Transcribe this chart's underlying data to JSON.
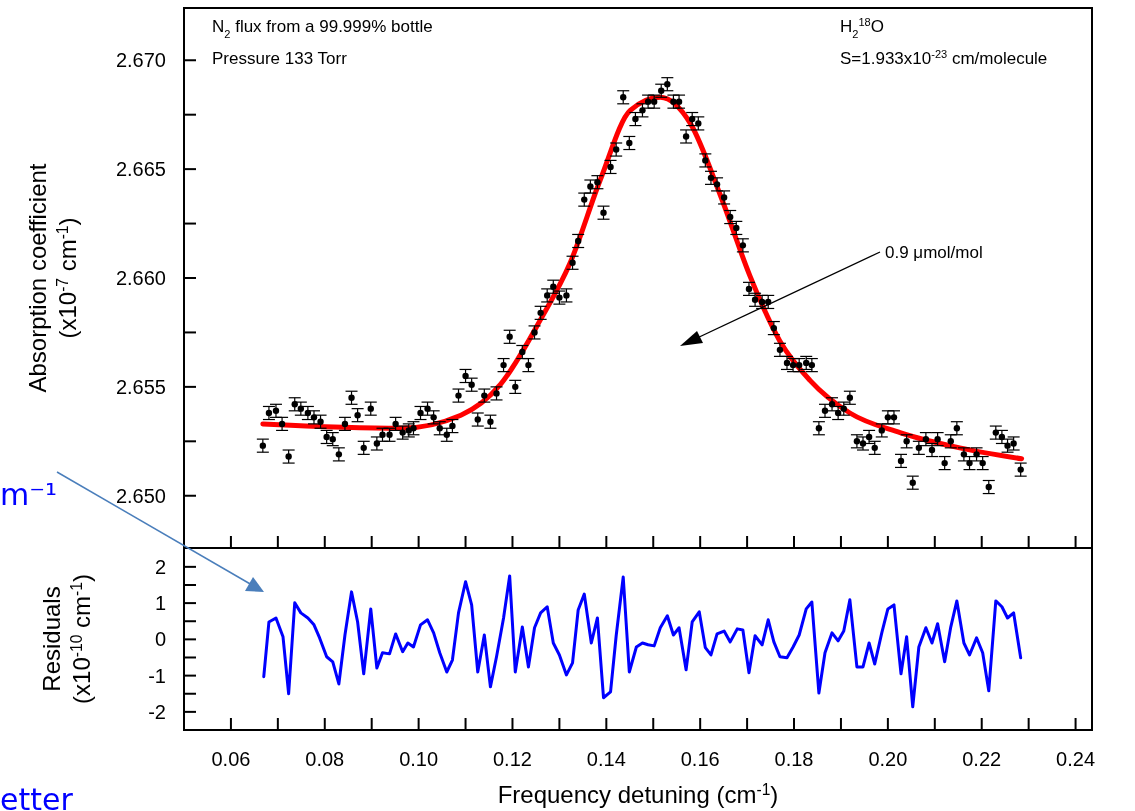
{
  "chart_data": [
    {
      "type": "scatter",
      "ylabel": "Absorption coefficient (x10$^{-7}$ cm$^{-1}$)",
      "tick_labels": "y",
      "grid": false,
      "annotations": [
        "N$_{2}$ flux from a 99.999% bottle",
        "Pressure 133 Torr",
        "H$_{2}$$^{18}$O",
        "S=1.933x10$^{-23}$ cm/molecule",
        "0.9 μmol/mol",
        "m⁻¹"
      ],
      "xlim": [
        0.05,
        0.2435
      ],
      "ylim": [
        2.6476,
        2.6724
      ],
      "xticks": [
        {
          "value": 0.06,
          "label": null
        },
        {
          "value": 0.07,
          "label": null
        },
        {
          "value": 0.08,
          "label": null
        },
        {
          "value": 0.09,
          "label": null
        },
        {
          "value": 0.1,
          "label": null
        },
        {
          "value": 0.11,
          "label": null
        },
        {
          "value": 0.12,
          "label": null
        },
        {
          "value": 0.13,
          "label": null
        },
        {
          "value": 0.14,
          "label": null
        },
        {
          "value": 0.15,
          "label": null
        },
        {
          "value": 0.16,
          "label": null
        },
        {
          "value": 0.17,
          "label": null
        },
        {
          "value": 0.18,
          "label": null
        },
        {
          "value": 0.19,
          "label": null
        },
        {
          "value": 0.2,
          "label": null
        },
        {
          "value": 0.21,
          "label": null
        },
        {
          "value": 0.22,
          "label": null
        },
        {
          "value": 0.23,
          "label": null
        },
        {
          "value": 0.24,
          "label": null
        }
      ],
      "yticks": [
        {
          "value": 2.65,
          "label": "2.650"
        },
        {
          "value": 2.6525,
          "label": null
        },
        {
          "value": 2.655,
          "label": "2.655"
        },
        {
          "value": 2.6575,
          "label": null
        },
        {
          "value": 2.66,
          "label": "2.660"
        },
        {
          "value": 2.6625,
          "label": null
        },
        {
          "value": 2.665,
          "label": "2.665"
        },
        {
          "value": 2.6675,
          "label": null
        },
        {
          "value": 2.67,
          "label": "2.670"
        }
      ],
      "series": [
        {
          "marker": "circle",
          "color": "#000000",
          "x": [
            0.0668,
            0.0681,
            0.0696,
            0.0709,
            0.0723,
            0.0736,
            0.0749,
            0.0764,
            0.0777,
            0.0791,
            0.0804,
            0.0817,
            0.083,
            0.0843,
            0.0857,
            0.087,
            0.0883,
            0.0898,
            0.0911,
            0.0923,
            0.0938,
            0.0951,
            0.0966,
            0.0979,
            0.0989,
            0.1004,
            0.1019,
            0.1032,
            0.1045,
            0.106,
            0.1072,
            0.1085,
            0.11,
            0.1113,
            0.1126,
            0.114,
            0.1153,
            0.1166,
            0.1181,
            0.1194,
            0.1206,
            0.1221,
            0.1234,
            0.1247,
            0.126,
            0.1274,
            0.1287,
            0.13,
            0.1315,
            0.1328,
            0.134,
            0.1353,
            0.1366,
            0.1381,
            0.1394,
            0.1409,
            0.1421,
            0.1436,
            0.1449,
            0.1462,
            0.1477,
            0.1489,
            0.1502,
            0.1517,
            0.153,
            0.1543,
            0.1555,
            0.157,
            0.1583,
            0.1596,
            0.1611,
            0.1623,
            0.1636,
            0.1651,
            0.1664,
            0.1677,
            0.1691,
            0.1704,
            0.1717,
            0.1732,
            0.1745,
            0.1757,
            0.177,
            0.1785,
            0.1798,
            0.1811,
            0.1826,
            0.1838,
            0.1853,
            0.1866,
            0.1881,
            0.1894,
            0.1906,
            0.1919,
            0.1934,
            0.1947,
            0.196,
            0.1972,
            0.1987,
            0.2,
            0.2013,
            0.2028,
            0.204,
            0.2053,
            0.2066,
            0.2081,
            0.2094,
            0.2106,
            0.2121,
            0.2134,
            0.2147,
            0.2162,
            0.2174,
            0.2189,
            0.2202,
            0.2215,
            0.223,
            0.2243,
            0.2255,
            0.2268,
            0.2283
          ],
          "values": [
            2.6523,
            2.6538,
            2.6539,
            2.6533,
            2.6518,
            2.6542,
            2.654,
            2.6538,
            2.6536,
            2.6534,
            2.6527,
            2.6526,
            2.6519,
            2.6533,
            2.6545,
            2.6537,
            2.6522,
            2.654,
            2.6524,
            2.6528,
            2.6528,
            2.6533,
            2.6529,
            2.653,
            2.6531,
            2.6538,
            2.654,
            2.6536,
            2.6531,
            2.6528,
            2.6532,
            2.6546,
            2.6555,
            2.6551,
            2.6535,
            2.6546,
            2.6534,
            2.6547,
            2.656,
            2.6573,
            2.655,
            2.6566,
            2.656,
            2.6575,
            2.6584,
            2.6592,
            2.6596,
            2.6591,
            2.6592,
            2.6607,
            2.6617,
            2.6636,
            2.6642,
            2.6644,
            2.663,
            2.6651,
            2.6659,
            2.6683,
            2.6662,
            2.6673,
            2.6677,
            2.6681,
            2.6681,
            2.6686,
            2.6689,
            2.6681,
            2.6681,
            2.6665,
            2.6673,
            2.6671,
            2.6654,
            2.6646,
            2.6643,
            2.6637,
            2.6628,
            2.6623,
            2.6615,
            2.6595,
            2.659,
            2.6589,
            2.6589,
            2.6577,
            2.6567,
            2.6561,
            2.656,
            2.656,
            2.6561,
            2.656,
            2.6531,
            2.6539,
            2.6542,
            2.6538,
            2.654,
            2.6545,
            2.6525,
            2.6524,
            2.6527,
            2.6522,
            2.653,
            2.6536,
            2.6536,
            2.6516,
            2.6525,
            2.6506,
            2.6522,
            2.6526,
            2.6521,
            2.6526,
            2.6515,
            2.6525,
            2.6531,
            2.6519,
            2.6515,
            2.6519,
            2.6515,
            2.6504,
            2.6529,
            2.6527,
            2.6523,
            2.6524,
            2.6512
          ],
          "errors": [
            0.0003,
            0.0003,
            0.0003,
            0.0003,
            0.0003,
            0.0003,
            0.0003,
            0.0003,
            0.0003,
            0.0003,
            0.0003,
            0.0003,
            0.0003,
            0.0003,
            0.0003,
            0.0003,
            0.0003,
            0.0003,
            0.0003,
            0.0003,
            0.0003,
            0.0003,
            0.0003,
            0.0003,
            0.0003,
            0.0003,
            0.0003,
            0.0003,
            0.0003,
            0.0003,
            0.0003,
            0.0003,
            0.0003,
            0.0003,
            0.0003,
            0.0003,
            0.0003,
            0.0003,
            0.0003,
            0.0003,
            0.0003,
            0.0003,
            0.0003,
            0.0003,
            0.0003,
            0.0003,
            0.0003,
            0.0003,
            0.0003,
            0.0003,
            0.0003,
            0.0003,
            0.0003,
            0.0003,
            0.0003,
            0.0003,
            0.0003,
            0.0003,
            0.0003,
            0.0003,
            0.0003,
            0.0003,
            0.0003,
            0.0003,
            0.0003,
            0.0003,
            0.0003,
            0.0003,
            0.0003,
            0.0003,
            0.0003,
            0.0003,
            0.0003,
            0.0003,
            0.0003,
            0.0003,
            0.0003,
            0.0003,
            0.0003,
            0.0003,
            0.0003,
            0.0003,
            0.0003,
            0.0003,
            0.0003,
            0.0003,
            0.0003,
            0.0003,
            0.0003,
            0.0003,
            0.0003,
            0.0003,
            0.0003,
            0.0003,
            0.0003,
            0.0003,
            0.0003,
            0.0003,
            0.0003,
            0.0003,
            0.0003,
            0.0003,
            0.0003,
            0.0003,
            0.0003,
            0.0003,
            0.0003,
            0.0003,
            0.0003,
            0.0003,
            0.0003,
            0.0003,
            0.0003,
            0.0003,
            0.0003,
            0.0003,
            0.0003,
            0.0003,
            0.0003,
            0.0003,
            0.0003
          ]
        },
        {
          "type": "line",
          "marker": "none",
          "color": "#ff0000",
          "x": [
            0.0668,
            0.0962,
            0.109,
            0.1174,
            0.126,
            0.1323,
            0.1387,
            0.1451,
            0.1515,
            0.1579,
            0.1643,
            0.1706,
            0.177,
            0.1834,
            0.1919,
            0.2026,
            0.2153,
            0.2285
          ],
          "values": [
            2.6533,
            2.6531,
            2.6537,
            2.6551,
            2.6581,
            2.6607,
            2.6645,
            2.6677,
            2.6683,
            2.6671,
            2.6638,
            2.6601,
            2.6571,
            2.6553,
            2.6538,
            2.6529,
            2.6522,
            2.6517
          ]
        }
      ]
    },
    {
      "type": "line",
      "xlabel": "Frequency detuning (cm$^{-1}$)",
      "ylabel": "Residuals (x10$^{-10}$ cm$^{-1}$)",
      "grid": false,
      "annotations": [
        "etter"
      ],
      "xlim": [
        0.05,
        0.2435
      ],
      "ylim": [
        -2.5,
        2.52
      ],
      "xticks": [
        {
          "value": 0.06,
          "label": "0.06"
        },
        {
          "value": 0.07,
          "label": null
        },
        {
          "value": 0.08,
          "label": "0.08"
        },
        {
          "value": 0.09,
          "label": null
        },
        {
          "value": 0.1,
          "label": "0.10"
        },
        {
          "value": 0.11,
          "label": null
        },
        {
          "value": 0.12,
          "label": "0.12"
        },
        {
          "value": 0.13,
          "label": null
        },
        {
          "value": 0.14,
          "label": "0.14"
        },
        {
          "value": 0.15,
          "label": null
        },
        {
          "value": 0.16,
          "label": "0.16"
        },
        {
          "value": 0.17,
          "label": null
        },
        {
          "value": 0.18,
          "label": "0.18"
        },
        {
          "value": 0.19,
          "label": null
        },
        {
          "value": 0.2,
          "label": "0.20"
        },
        {
          "value": 0.21,
          "label": null
        },
        {
          "value": 0.22,
          "label": "0.22"
        },
        {
          "value": 0.23,
          "label": null
        },
        {
          "value": 0.24,
          "label": "0.24"
        }
      ],
      "yticks": [
        -2,
        {
          "value": -1.5,
          "label": null
        },
        -1,
        {
          "value": -0.5,
          "label": null
        },
        0,
        {
          "value": 0.5,
          "label": null
        },
        1,
        {
          "value": 1.5,
          "label": null
        },
        2
      ],
      "series": [
        {
          "marker": "none",
          "color": "#0000ff",
          "x": [
            0.067,
            0.0681,
            0.0696,
            0.0711,
            0.0723,
            0.0736,
            0.0749,
            0.0764,
            0.0777,
            0.0789,
            0.0804,
            0.0817,
            0.083,
            0.0843,
            0.0857,
            0.087,
            0.0883,
            0.0898,
            0.0911,
            0.0923,
            0.0938,
            0.0951,
            0.0966,
            0.0977,
            0.0989,
            0.1004,
            0.1019,
            0.1032,
            0.1045,
            0.106,
            0.1072,
            0.1085,
            0.11,
            0.1113,
            0.1126,
            0.114,
            0.1153,
            0.1166,
            0.1181,
            0.1194,
            0.1206,
            0.1221,
            0.1234,
            0.1247,
            0.126,
            0.1274,
            0.1287,
            0.13,
            0.1315,
            0.1328,
            0.134,
            0.1353,
            0.1368,
            0.1381,
            0.1394,
            0.1409,
            0.1421,
            0.1436,
            0.1449,
            0.1464,
            0.1477,
            0.1489,
            0.1502,
            0.1515,
            0.153,
            0.1543,
            0.1555,
            0.157,
            0.1583,
            0.1598,
            0.1611,
            0.1623,
            0.1636,
            0.1651,
            0.1664,
            0.1679,
            0.1691,
            0.1704,
            0.1717,
            0.1732,
            0.1745,
            0.1757,
            0.177,
            0.1785,
            0.1798,
            0.1811,
            0.1826,
            0.1838,
            0.1853,
            0.1866,
            0.1881,
            0.1894,
            0.1906,
            0.1919,
            0.1934,
            0.1947,
            0.196,
            0.1972,
            0.1987,
            0.2,
            0.2013,
            0.2028,
            0.204,
            0.2053,
            0.2066,
            0.2081,
            0.2094,
            0.2106,
            0.2121,
            0.2134,
            0.2147,
            0.2162,
            0.2174,
            0.2189,
            0.2202,
            0.2215,
            0.223,
            0.2243,
            0.2255,
            0.2268,
            0.2283
          ],
          "values": [
            -1.03,
            0.48,
            0.59,
            0.07,
            -1.5,
            1.01,
            0.73,
            0.59,
            0.4,
            0.04,
            -0.48,
            -0.62,
            -1.23,
            0.12,
            1.31,
            0.48,
            -0.95,
            0.84,
            -0.79,
            -0.37,
            -0.4,
            0.15,
            -0.34,
            -0.1,
            -0.21,
            0.4,
            0.54,
            0.18,
            -0.37,
            -0.9,
            -0.57,
            0.73,
            1.59,
            0.95,
            -0.9,
            0.12,
            -1.31,
            -0.48,
            0.59,
            1.75,
            -0.9,
            0.34,
            -0.76,
            0.32,
            0.73,
            0.9,
            -0.1,
            -0.43,
            -0.98,
            -0.65,
            0.81,
            1.25,
            -0.1,
            0.59,
            -1.61,
            -1.45,
            0.1,
            1.72,
            -0.9,
            -0.21,
            -0.1,
            -0.15,
            -0.18,
            0.32,
            0.65,
            0.12,
            0.32,
            -0.84,
            0.48,
            0.76,
            -0.23,
            -0.43,
            0.15,
            0.23,
            -0.07,
            0.29,
            0.26,
            -0.92,
            0.1,
            -0.15,
            0.54,
            -0.07,
            -0.48,
            -0.51,
            -0.21,
            0.12,
            0.84,
            1.03,
            -1.48,
            -0.37,
            0.18,
            -0.04,
            0.23,
            1.09,
            -0.76,
            -0.76,
            -0.1,
            -0.68,
            0.18,
            0.84,
            0.95,
            -0.95,
            0.07,
            -1.86,
            -0.21,
            0.32,
            -0.1,
            0.43,
            -0.62,
            0.34,
            1.06,
            -0.1,
            -0.43,
            0.04,
            -0.37,
            -1.42,
            1.06,
            0.9,
            0.59,
            0.73,
            -0.51
          ]
        }
      ]
    }
  ]
}
